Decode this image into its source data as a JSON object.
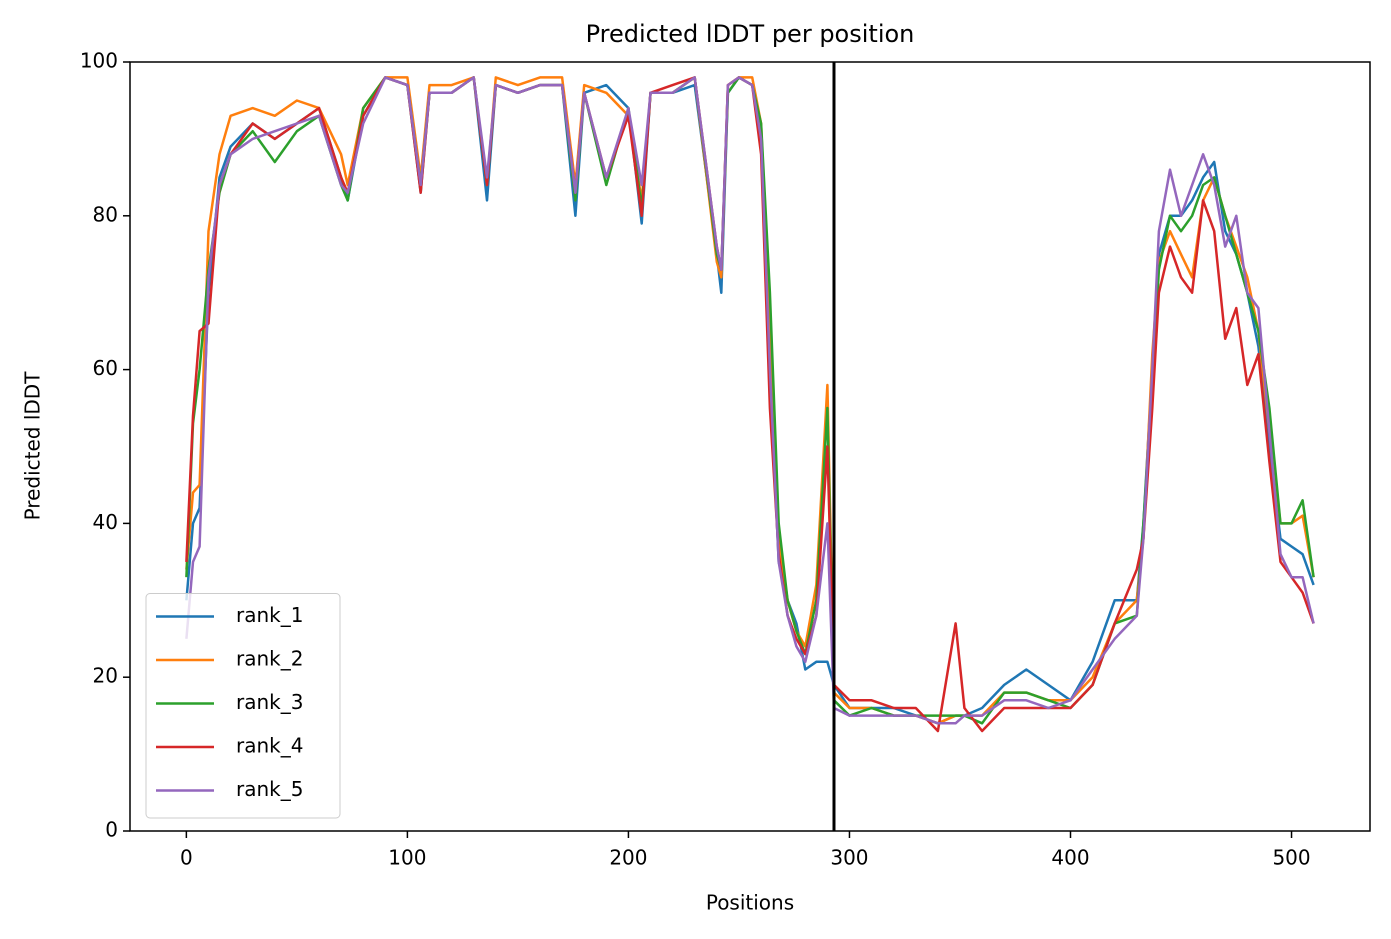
{
  "chart_data": {
    "type": "line",
    "title": "Predicted lDDT per position",
    "xlabel": "Positions",
    "ylabel": "Predicted lDDT",
    "x": [
      0,
      3,
      6,
      10,
      15,
      20,
      30,
      40,
      50,
      60,
      70,
      73,
      80,
      90,
      100,
      106,
      110,
      120,
      130,
      136,
      140,
      150,
      160,
      170,
      176,
      180,
      190,
      200,
      206,
      210,
      220,
      230,
      240,
      242,
      245,
      250,
      256,
      260,
      264,
      268,
      272,
      276,
      280,
      285,
      290,
      293,
      300,
      310,
      320,
      330,
      340,
      348,
      352,
      360,
      370,
      380,
      390,
      400,
      410,
      420,
      430,
      433,
      437,
      440,
      445,
      450,
      455,
      460,
      465,
      470,
      475,
      480,
      485,
      490,
      495,
      500,
      505,
      510
    ],
    "series": [
      {
        "name": "rank_1",
        "color": "#1f77b4",
        "values": [
          30,
          40,
          42,
          70,
          85,
          89,
          92,
          90,
          92,
          94,
          85,
          82,
          93,
          98,
          97,
          83,
          96,
          96,
          98,
          82,
          97,
          96,
          97,
          97,
          80,
          96,
          97,
          94,
          79,
          96,
          96,
          97,
          75,
          70,
          96,
          98,
          97,
          90,
          60,
          35,
          30,
          27,
          21,
          22,
          22,
          19,
          16,
          16,
          16,
          15,
          14,
          15,
          15,
          16,
          19,
          21,
          19,
          17,
          22,
          30,
          30,
          40,
          60,
          75,
          80,
          80,
          82,
          85,
          87,
          78,
          75,
          70,
          63,
          50,
          38,
          37,
          36,
          32
        ]
      },
      {
        "name": "rank_2",
        "color": "#ff7f0e",
        "values": [
          34,
          44,
          45,
          78,
          88,
          93,
          94,
          93,
          95,
          94,
          88,
          84,
          94,
          98,
          98,
          85,
          97,
          97,
          98,
          84,
          98,
          97,
          98,
          98,
          84,
          97,
          96,
          93,
          82,
          96,
          96,
          98,
          74,
          72,
          97,
          98,
          98,
          92,
          65,
          38,
          30,
          26,
          24,
          32,
          58,
          18,
          16,
          16,
          15,
          15,
          14,
          15,
          15,
          15,
          18,
          18,
          17,
          17,
          20,
          27,
          30,
          38,
          62,
          74,
          78,
          75,
          72,
          82,
          85,
          80,
          76,
          72,
          65,
          52,
          40,
          40,
          41,
          33
        ]
      },
      {
        "name": "rank_3",
        "color": "#2ca02c",
        "values": [
          33,
          53,
          60,
          73,
          83,
          88,
          91,
          87,
          91,
          93,
          84,
          82,
          94,
          98,
          97,
          84,
          96,
          96,
          98,
          84,
          97,
          96,
          97,
          97,
          82,
          96,
          84,
          94,
          81,
          96,
          96,
          98,
          75,
          73,
          96,
          98,
          97,
          92,
          70,
          40,
          30,
          26,
          23,
          30,
          55,
          17,
          15,
          16,
          15,
          15,
          15,
          15,
          15,
          14,
          18,
          18,
          17,
          16,
          19,
          27,
          28,
          40,
          58,
          73,
          80,
          78,
          80,
          84,
          85,
          80,
          75,
          70,
          65,
          55,
          40,
          40,
          43,
          33
        ]
      },
      {
        "name": "rank_4",
        "color": "#d62728",
        "values": [
          35,
          54,
          65,
          66,
          84,
          88,
          92,
          90,
          92,
          94,
          85,
          83,
          93,
          98,
          97,
          83,
          96,
          96,
          98,
          84,
          97,
          96,
          97,
          97,
          83,
          96,
          85,
          93,
          80,
          96,
          97,
          98,
          76,
          73,
          97,
          98,
          97,
          88,
          55,
          36,
          28,
          25,
          23,
          28,
          50,
          19,
          17,
          17,
          16,
          16,
          13,
          27,
          16,
          13,
          16,
          16,
          16,
          16,
          19,
          27,
          34,
          38,
          55,
          70,
          76,
          72,
          70,
          82,
          78,
          64,
          68,
          58,
          62,
          48,
          35,
          33,
          31,
          27
        ]
      },
      {
        "name": "rank_5",
        "color": "#9467bd",
        "values": [
          25,
          35,
          37,
          72,
          84,
          88,
          90,
          91,
          92,
          93,
          84,
          83,
          92,
          98,
          97,
          84,
          96,
          96,
          98,
          85,
          97,
          96,
          97,
          97,
          83,
          96,
          85,
          94,
          84,
          96,
          96,
          98,
          76,
          73,
          97,
          98,
          97,
          90,
          60,
          35,
          28,
          24,
          22,
          28,
          40,
          16,
          15,
          15,
          15,
          15,
          14,
          14,
          15,
          15,
          17,
          17,
          16,
          17,
          21,
          25,
          28,
          38,
          60,
          78,
          86,
          80,
          84,
          88,
          84,
          76,
          80,
          70,
          68,
          52,
          36,
          33,
          33,
          27
        ]
      }
    ],
    "vline": 293,
    "xlim": [
      -25.5,
      535.5
    ],
    "ylim": [
      0,
      100
    ],
    "xticks": [
      0,
      100,
      200,
      300,
      400,
      500
    ],
    "yticks": [
      0,
      20,
      40,
      60,
      80,
      100
    ],
    "grid": false,
    "legend": "lower left"
  }
}
